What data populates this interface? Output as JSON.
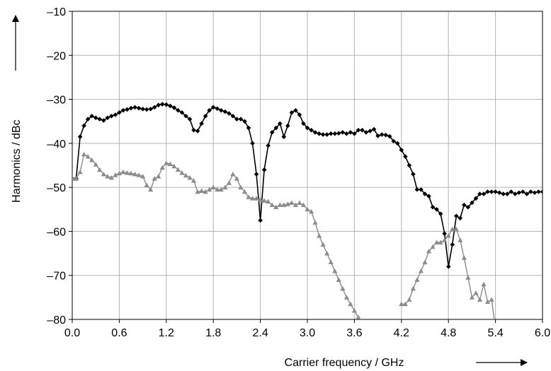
{
  "chart_data": {
    "type": "line",
    "title": "",
    "xlabel": "Carrier frequency / GHz",
    "ylabel": "Harmonics / dBc",
    "xlim": [
      0.0,
      6.0
    ],
    "ylim": [
      -80,
      -10
    ],
    "xticks": [
      0.0,
      0.6,
      1.2,
      1.8,
      2.4,
      3.0,
      3.6,
      4.2,
      4.8,
      5.4,
      6.0
    ],
    "xtick_labels": [
      "0.0",
      "0.6",
      "1.2",
      "1.8",
      "2.4",
      "3.0",
      "3.6",
      "4.2",
      "4.8",
      "5.4",
      "6.0"
    ],
    "yticks": [
      -80,
      -70,
      -60,
      -50,
      -40,
      -30,
      -20,
      -10
    ],
    "ytick_labels": [
      "–80",
      "–70",
      "–60",
      "–50",
      "–40",
      "–30",
      "–20",
      "–10"
    ],
    "grid": true,
    "legend": "none",
    "colors": {
      "series1": "#000000",
      "series2": "#8c8c8c",
      "grid": "#b3b3b3"
    },
    "series": [
      {
        "marker": "diamond",
        "color": "#000000",
        "x": [
          0.0,
          0.05,
          0.1,
          0.15,
          0.2,
          0.25,
          0.3,
          0.35,
          0.4,
          0.45,
          0.5,
          0.55,
          0.6,
          0.65,
          0.7,
          0.75,
          0.8,
          0.85,
          0.9,
          0.95,
          1.0,
          1.05,
          1.1,
          1.15,
          1.2,
          1.25,
          1.3,
          1.35,
          1.4,
          1.45,
          1.5,
          1.55,
          1.6,
          1.65,
          1.7,
          1.75,
          1.8,
          1.85,
          1.9,
          1.95,
          2.0,
          2.05,
          2.1,
          2.15,
          2.2,
          2.25,
          2.3,
          2.35,
          2.4,
          2.45,
          2.5,
          2.55,
          2.6,
          2.65,
          2.7,
          2.75,
          2.8,
          2.85,
          2.9,
          2.95,
          3.0,
          3.05,
          3.1,
          3.15,
          3.2,
          3.25,
          3.3,
          3.35,
          3.4,
          3.45,
          3.5,
          3.55,
          3.6,
          3.65,
          3.7,
          3.75,
          3.8,
          3.85,
          3.9,
          3.95,
          4.0,
          4.05,
          4.1,
          4.15,
          4.2,
          4.25,
          4.3,
          4.35,
          4.4,
          4.45,
          4.5,
          4.55,
          4.6,
          4.65,
          4.7,
          4.75,
          4.8,
          4.85,
          4.9,
          4.95,
          5.0,
          5.05,
          5.1,
          5.15,
          5.2,
          5.25,
          5.3,
          5.35,
          5.4,
          5.45,
          5.5,
          5.55,
          5.6,
          5.65,
          5.7,
          5.75,
          5.8,
          5.85,
          5.9,
          5.95,
          6.0
        ],
        "y": [
          -48.0,
          -48.0,
          -38.5,
          -36.0,
          -34.5,
          -33.8,
          -34.2,
          -34.5,
          -34.8,
          -34.2,
          -33.8,
          -33.5,
          -33.0,
          -32.5,
          -32.3,
          -32.0,
          -31.8,
          -32.0,
          -32.2,
          -32.3,
          -32.2,
          -31.8,
          -31.3,
          -31.1,
          -31.2,
          -31.5,
          -31.9,
          -32.5,
          -33.0,
          -33.8,
          -34.5,
          -37.0,
          -37.2,
          -35.5,
          -33.8,
          -32.5,
          -31.8,
          -32.1,
          -32.5,
          -32.8,
          -33.2,
          -33.8,
          -34.5,
          -34.5,
          -35.0,
          -36.5,
          -40.0,
          -47.0,
          -57.5,
          -46.0,
          -40.5,
          -37.5,
          -36.5,
          -35.5,
          -38.5,
          -36.0,
          -33.0,
          -32.5,
          -33.5,
          -35.5,
          -36.5,
          -37.0,
          -37.5,
          -37.8,
          -38.0,
          -38.0,
          -37.8,
          -37.8,
          -37.7,
          -37.5,
          -37.8,
          -37.5,
          -37.8,
          -37.0,
          -37.0,
          -37.5,
          -37.2,
          -36.8,
          -38.3,
          -38.0,
          -38.1,
          -38.4,
          -39.5,
          -40.0,
          -41.5,
          -43.0,
          -45.0,
          -47.0,
          -50.5,
          -50.5,
          -51.5,
          -52.0,
          -54.5,
          -55.0,
          -56.0,
          -60.5,
          -68.0,
          -63.0,
          -56.5,
          -57.0,
          -54.0,
          -54.5,
          -53.5,
          -52.5,
          -51.5,
          -51.5,
          -51.0,
          -51.0,
          -51.0,
          -51.2,
          -51.5,
          -51.5,
          -51.0,
          -51.5,
          -51.2,
          -51.0,
          -51.5,
          -51.0,
          -51.2,
          -51.0,
          -51.0
        ]
      },
      {
        "marker": "triangle",
        "color": "#8c8c8c",
        "x": [
          0.0,
          0.05,
          0.1,
          0.15,
          0.2,
          0.25,
          0.3,
          0.35,
          0.4,
          0.45,
          0.5,
          0.55,
          0.6,
          0.65,
          0.7,
          0.75,
          0.8,
          0.85,
          0.9,
          0.95,
          1.0,
          1.05,
          1.1,
          1.15,
          1.2,
          1.25,
          1.3,
          1.35,
          1.4,
          1.45,
          1.5,
          1.55,
          1.6,
          1.65,
          1.7,
          1.75,
          1.8,
          1.85,
          1.9,
          1.95,
          2.0,
          2.05,
          2.1,
          2.15,
          2.2,
          2.25,
          2.3,
          2.35,
          2.4,
          2.45,
          2.5,
          2.55,
          2.6,
          2.65,
          2.7,
          2.75,
          2.8,
          2.85,
          2.9,
          2.95,
          3.0,
          3.05,
          3.1,
          3.15,
          3.2,
          3.25,
          3.3,
          3.35,
          3.4,
          3.45,
          3.5,
          3.55,
          3.6,
          3.65,
          3.7,
          3.75,
          3.8
        ],
        "y": [
          -48.0,
          -48.0,
          -46.5,
          -42.5,
          -43.0,
          -43.8,
          -44.8,
          -46.0,
          -47.0,
          -47.5,
          -47.8,
          -47.2,
          -46.8,
          -46.5,
          -46.7,
          -46.8,
          -47.0,
          -47.2,
          -47.5,
          -49.5,
          -50.5,
          -48.0,
          -47.5,
          -45.5,
          -44.5,
          -44.7,
          -45.2,
          -46.0,
          -46.7,
          -47.3,
          -47.8,
          -48.5,
          -51.0,
          -50.8,
          -51.0,
          -50.5,
          -50.0,
          -50.5,
          -50.5,
          -50.0,
          -49.0,
          -47.0,
          -48.0,
          -50.0,
          -51.0,
          -52.2,
          -52.5,
          -52.5,
          -52.8,
          -53.0,
          -53.2,
          -54.0,
          -54.5,
          -54.0,
          -54.0,
          -53.8,
          -53.5,
          -54.0,
          -53.5,
          -54.0,
          -55.0,
          -55.5,
          -58.0,
          -61.0,
          -63.0,
          -65.0,
          -67.0,
          -69.0,
          -71.0,
          -73.0,
          -75.0,
          -76.5,
          -78.0,
          -79.5,
          -80.5,
          -82.0,
          -82.0
        ]
      },
      {
        "marker": "triangle",
        "color": "#8c8c8c",
        "x": [
          4.2,
          4.25,
          4.3,
          4.35,
          4.4,
          4.45,
          4.5,
          4.55,
          4.6,
          4.65,
          4.7,
          4.75,
          4.8,
          4.85,
          4.9,
          4.95,
          5.0,
          5.05,
          5.1,
          5.15,
          5.2,
          5.25,
          5.3,
          5.35,
          5.4,
          5.45,
          5.5,
          5.55,
          5.6
        ],
        "y": [
          -76.5,
          -76.5,
          -75.5,
          -73.0,
          -71.0,
          -69.0,
          -67.0,
          -64.5,
          -63.5,
          -62.5,
          -62.5,
          -62.0,
          -61.0,
          -59.5,
          -59.5,
          -62.0,
          -66.0,
          -70.5,
          -75.0,
          -74.0,
          -75.5,
          -72.0,
          -76.0,
          -75.5,
          -82.0,
          -82.0,
          -82.0,
          -82.0,
          -82.0
        ]
      }
    ]
  }
}
